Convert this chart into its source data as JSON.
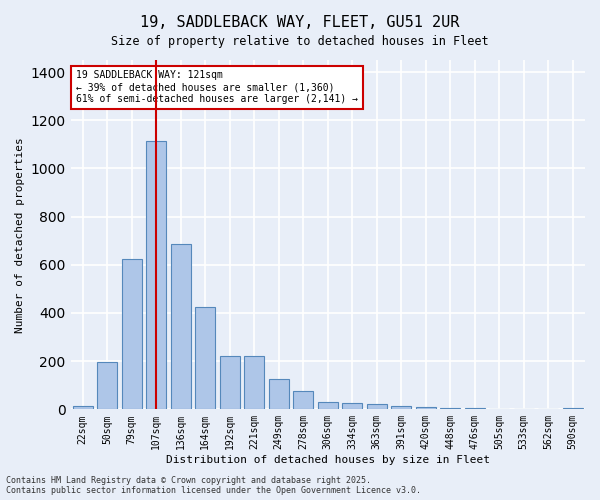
{
  "title_line1": "19, SADDLEBACK WAY, FLEET, GU51 2UR",
  "title_line2": "Size of property relative to detached houses in Fleet",
  "xlabel": "Distribution of detached houses by size in Fleet",
  "ylabel": "Number of detached properties",
  "bar_categories": [
    "22sqm",
    "50sqm",
    "79sqm",
    "107sqm",
    "136sqm",
    "164sqm",
    "192sqm",
    "221sqm",
    "249sqm",
    "278sqm",
    "306sqm",
    "334sqm",
    "363sqm",
    "391sqm",
    "420sqm",
    "448sqm",
    "476sqm",
    "505sqm",
    "533sqm",
    "562sqm",
    "590sqm"
  ],
  "bar_values": [
    15,
    195,
    625,
    1115,
    685,
    425,
    220,
    220,
    125,
    75,
    30,
    25,
    22,
    15,
    8,
    5,
    5,
    3,
    0,
    0,
    5
  ],
  "bar_color": "#aec6e8",
  "bar_edge_color": "#5588bb",
  "bg_color": "#e8eef8",
  "grid_color": "#ffffff",
  "red_line_x": 3,
  "annotation_title": "19 SADDLEBACK WAY: 121sqm",
  "annotation_line1": "← 39% of detached houses are smaller (1,360)",
  "annotation_line2": "61% of semi-detached houses are larger (2,141) →",
  "annotation_box_color": "#ffffff",
  "annotation_border_color": "#cc0000",
  "footer_line1": "Contains HM Land Registry data © Crown copyright and database right 2025.",
  "footer_line2": "Contains public sector information licensed under the Open Government Licence v3.0.",
  "ylim": [
    0,
    1450
  ],
  "yticks": [
    0,
    200,
    400,
    600,
    800,
    1000,
    1200,
    1400
  ]
}
